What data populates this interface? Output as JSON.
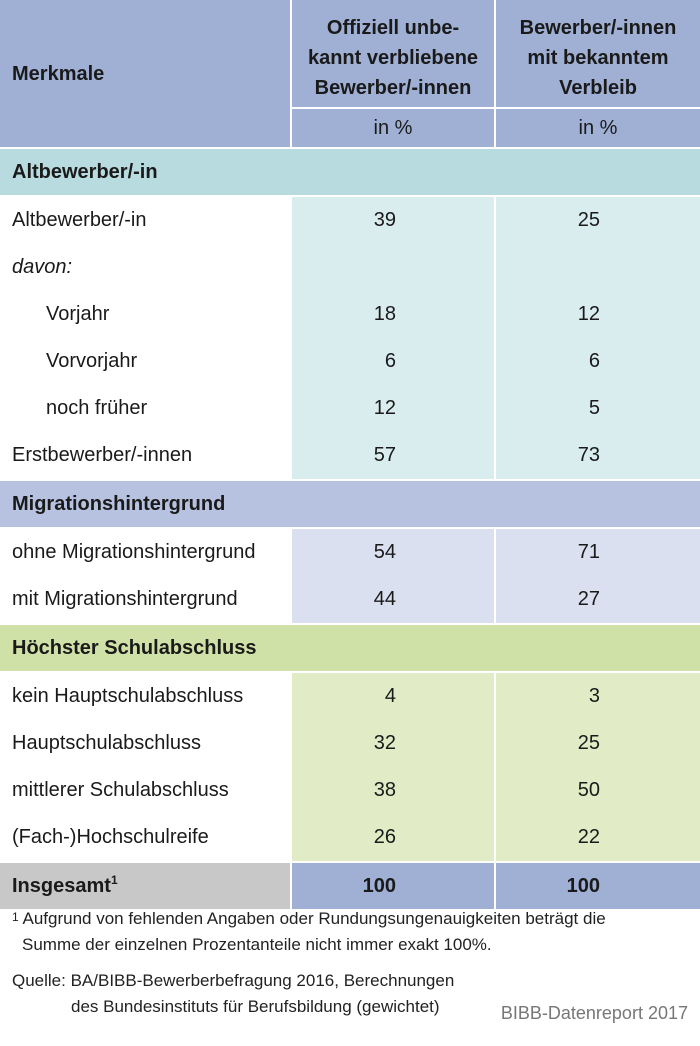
{
  "header": {
    "col1": "Merkmale",
    "col2_lines": [
      "Offiziell unbe-",
      "kannt verbliebene",
      "Bewerber/-innen"
    ],
    "col3_lines": [
      "Bewerber/-innen",
      "mit bekanntem",
      "Verbleib"
    ],
    "unit2": "in %",
    "unit3": "in %"
  },
  "sections": {
    "altbewerber": {
      "title": "Altbewerber/-in",
      "rows": [
        {
          "label": "Altbewerber/-in",
          "a": "39",
          "b": "25"
        },
        {
          "label": "davon:",
          "a": "",
          "b": ""
        },
        {
          "label": "Vorjahr",
          "a": "18",
          "b": "12"
        },
        {
          "label": "Vorvorjahr",
          "a": "6",
          "b": "6"
        },
        {
          "label": "noch früher",
          "a": "12",
          "b": "5"
        },
        {
          "label": "Erstbewerber/-innen",
          "a": "57",
          "b": "73"
        }
      ]
    },
    "migration": {
      "title": "Migrationshintergrund",
      "rows": [
        {
          "label": "ohne Migrationshintergrund",
          "a": "54",
          "b": "71"
        },
        {
          "label": "mit Migrationshintergrund",
          "a": "44",
          "b": "27"
        }
      ]
    },
    "schule": {
      "title": "Höchster Schulabschluss",
      "rows": [
        {
          "label": "kein Hauptschulabschluss",
          "a": "4",
          "b": "3"
        },
        {
          "label": "Hauptschulabschluss",
          "a": "32",
          "b": "25"
        },
        {
          "label": "mittlerer Schulabschluss",
          "a": "38",
          "b": "50"
        },
        {
          "label": "(Fach-)Hochschulreife",
          "a": "26",
          "b": "22"
        }
      ]
    }
  },
  "total": {
    "label": "Insgesamt",
    "sup": "1",
    "a": "100",
    "b": "100"
  },
  "footnote": {
    "marker": "1",
    "line1": "Aufgrund von fehlenden Angaben oder Rundungsungenauigkeiten beträgt die",
    "line2": "Summe der einzelnen Prozentanteile nicht immer exakt 100%."
  },
  "source": {
    "line1": "Quelle: BA/BIBB-Bewerberbefragung 2016, Berechnungen",
    "line2": "des Bundesinstituts für Berufsbildung (gewichtet)"
  },
  "credit": "BIBB-Datenreport 2017"
}
